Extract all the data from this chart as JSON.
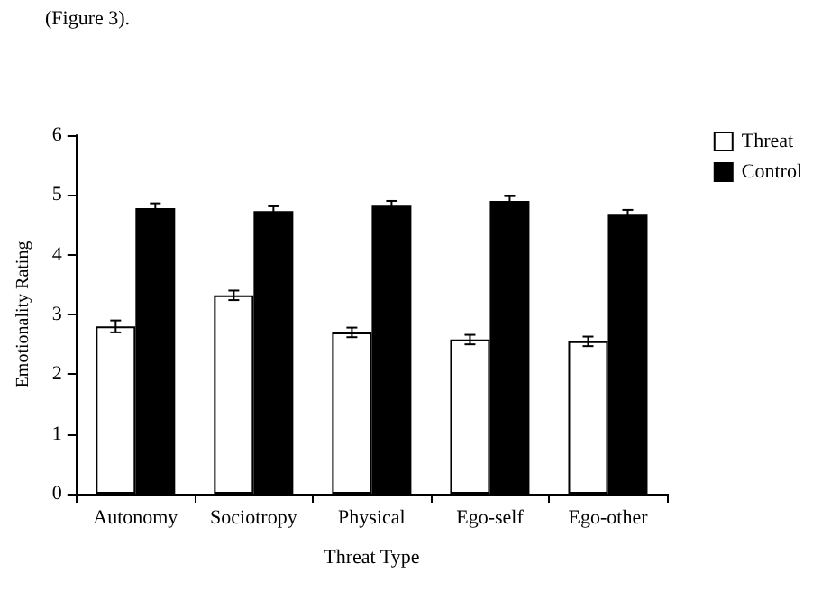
{
  "chart_data": {
    "type": "bar",
    "xlabel": "Threat Type",
    "ylabel": "Emotionality Rating",
    "annotations": [
      "(Figure 3)."
    ],
    "categories": [
      "Autonomy",
      "Sociotropy",
      "Physical",
      "Ego-self",
      "Ego-other"
    ],
    "series": [
      {
        "name": "Threat",
        "color": "#ffffff",
        "values": [
          2.8,
          3.32,
          2.7,
          2.58,
          2.55
        ],
        "errors": [
          0.1,
          0.08,
          0.08,
          0.08,
          0.08
        ]
      },
      {
        "name": "Control",
        "color": "#000000",
        "values": [
          4.78,
          4.73,
          4.82,
          4.9,
          4.67
        ],
        "errors": [
          0.08,
          0.08,
          0.08,
          0.08,
          0.08
        ]
      }
    ],
    "ylim": [
      0,
      6
    ],
    "yticks": [
      0,
      1,
      2,
      3,
      4,
      5,
      6
    ],
    "grid": false,
    "legend": "top right"
  }
}
